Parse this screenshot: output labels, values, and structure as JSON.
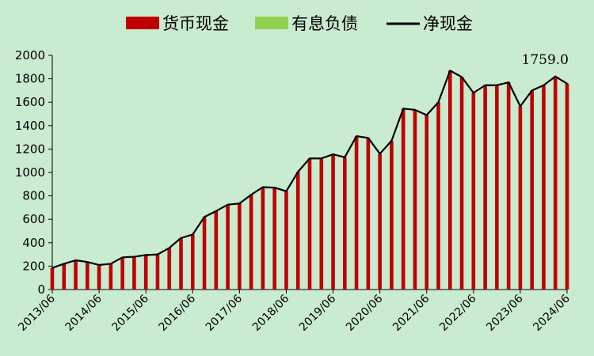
{
  "chart_data": {
    "type": "bar",
    "title": "",
    "xlabel": "",
    "ylabel": "",
    "ylim": [
      0,
      2000
    ],
    "yticks": [
      0,
      200,
      400,
      600,
      800,
      1000,
      1200,
      1400,
      1600,
      1800,
      2000
    ],
    "grid": false,
    "legend_position": "top",
    "categories": [
      "2013/06",
      "2013/09",
      "2013/12",
      "2014/03",
      "2014/06",
      "2014/09",
      "2014/12",
      "2015/03",
      "2015/06",
      "2015/09",
      "2015/12",
      "2016/03",
      "2016/06",
      "2016/09",
      "2016/12",
      "2017/03",
      "2017/06",
      "2017/09",
      "2017/12",
      "2018/03",
      "2018/06",
      "2018/09",
      "2018/12",
      "2019/03",
      "2019/06",
      "2019/09",
      "2019/12",
      "2020/03",
      "2020/06",
      "2020/09",
      "2020/12",
      "2021/03",
      "2021/06",
      "2021/09",
      "2021/12",
      "2022/03",
      "2022/06",
      "2022/09",
      "2022/12",
      "2023/03",
      "2023/06",
      "2023/09",
      "2023/12",
      "2024/03",
      "2024/06"
    ],
    "xtick_labels": [
      "2013/06",
      "2014/06",
      "2015/06",
      "2016/06",
      "2017/06",
      "2018/06",
      "2019/06",
      "2020/06",
      "2021/06",
      "2022/06",
      "2023/06",
      "2024/06"
    ],
    "series": [
      {
        "name": "货币现金",
        "kind": "bar",
        "color": "#c00000",
        "values": [
          185,
          220,
          250,
          235,
          210,
          220,
          275,
          280,
          295,
          300,
          355,
          440,
          470,
          620,
          670,
          725,
          735,
          810,
          875,
          870,
          840,
          1005,
          1120,
          1120,
          1155,
          1130,
          1310,
          1295,
          1160,
          1270,
          1545,
          1535,
          1490,
          1600,
          1870,
          1815,
          1680,
          1745,
          1745,
          1770,
          1565,
          1700,
          1745,
          1820,
          1759
        ]
      },
      {
        "name": "有息负债",
        "kind": "bar",
        "color": "#92d050",
        "values": [
          0,
          0,
          0,
          0,
          0,
          0,
          0,
          0,
          0,
          0,
          0,
          0,
          0,
          0,
          0,
          0,
          0,
          0,
          0,
          0,
          0,
          0,
          0,
          0,
          0,
          0,
          0,
          0,
          0,
          0,
          0,
          0,
          0,
          0,
          0,
          0,
          0,
          0,
          0,
          0,
          0,
          0,
          0,
          0,
          0
        ]
      },
      {
        "name": "净现金",
        "kind": "line",
        "color": "#000000",
        "values": [
          185,
          220,
          250,
          235,
          210,
          220,
          275,
          280,
          295,
          300,
          355,
          440,
          470,
          620,
          670,
          725,
          735,
          810,
          875,
          870,
          840,
          1005,
          1120,
          1120,
          1155,
          1130,
          1310,
          1295,
          1160,
          1270,
          1545,
          1535,
          1490,
          1600,
          1870,
          1815,
          1680,
          1745,
          1745,
          1770,
          1565,
          1700,
          1745,
          1820,
          1759
        ]
      }
    ],
    "annotations": [
      {
        "text": "1759.0",
        "category": "2024/06",
        "value": 1759
      }
    ]
  }
}
